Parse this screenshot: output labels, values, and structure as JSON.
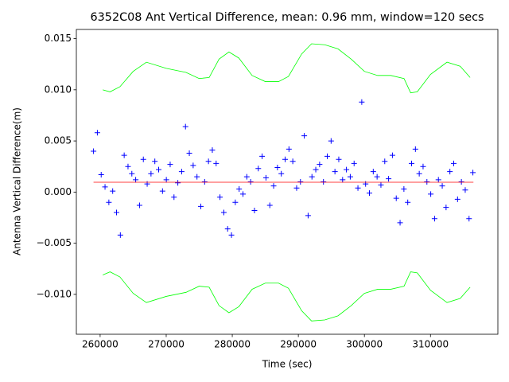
{
  "chart_data": {
    "type": "scatter",
    "title": "6352C08 Ant Vertical Difference, mean: 0.96 mm, window=120 secs",
    "x_label": "Time (sec)",
    "y_label": "Antenna Vertical Difference(m)",
    "xlim": [
      256400,
      320200
    ],
    "ylim": [
      -0.0139,
      0.0159
    ],
    "xticks": [
      260000,
      270000,
      280000,
      290000,
      300000,
      310000
    ],
    "yticks": [
      {
        "value": -0.01,
        "label": "−0.010"
      },
      {
        "value": -0.005,
        "label": "−0.005"
      },
      {
        "value": 0,
        "label": "0.000"
      },
      {
        "value": 0.005,
        "label": "0.005"
      },
      {
        "value": 0.01,
        "label": "0.010"
      },
      {
        "value": 0.015,
        "label": "0.015"
      }
    ],
    "series": [
      {
        "style": "marker",
        "color": "#0000ff",
        "x": [
          259000,
          259580,
          260160,
          260740,
          261320,
          261900,
          262480,
          263060,
          263640,
          264220,
          264800,
          265380,
          265960,
          266540,
          267120,
          267700,
          268280,
          268860,
          269440,
          270020,
          270600,
          271180,
          271760,
          272340,
          272920,
          273500,
          274080,
          274660,
          275240,
          275820,
          276400,
          276980,
          277560,
          278140,
          278720,
          279300,
          279880,
          280460,
          281040,
          281620,
          282200,
          282780,
          283360,
          283940,
          284520,
          285100,
          285680,
          286260,
          286840,
          287420,
          288000,
          288580,
          289160,
          289740,
          290320,
          290900,
          291480,
          292060,
          292640,
          293220,
          293800,
          294380,
          294960,
          295540,
          296120,
          296700,
          297280,
          297860,
          298440,
          299020,
          299600,
          300180,
          300760,
          301340,
          301920,
          302500,
          303080,
          303660,
          304240,
          304820,
          305400,
          305980,
          306560,
          307140,
          307720,
          308300,
          308880,
          309460,
          310040,
          310620,
          311200,
          311780,
          312360,
          312940,
          313520,
          314100,
          314680,
          315260,
          315840,
          316420
        ],
        "values": [
          0.004,
          0.0058,
          0.0017,
          0.0005,
          -0.001,
          0.0001,
          -0.002,
          -0.0042,
          0.0036,
          0.0025,
          0.0018,
          0.0012,
          -0.0013,
          0.0032,
          0.0008,
          0.0018,
          0.003,
          0.0022,
          0.0001,
          0.0012,
          0.0027,
          -0.0005,
          0.0009,
          0.002,
          0.0064,
          0.0038,
          0.0026,
          0.0015,
          -0.0014,
          0.001,
          0.003,
          0.0041,
          0.0028,
          -0.0005,
          -0.002,
          -0.0036,
          -0.0042,
          -0.001,
          0.0003,
          -0.0002,
          0.0015,
          0.001,
          -0.0018,
          0.0023,
          0.0035,
          0.0014,
          -0.0013,
          0.0006,
          0.0024,
          0.0018,
          0.0032,
          0.0042,
          0.003,
          0.0004,
          0.001,
          0.0055,
          -0.0023,
          0.0015,
          0.0022,
          0.0027,
          0.001,
          0.0035,
          0.005,
          0.002,
          0.0032,
          0.0012,
          0.0022,
          0.0015,
          0.0028,
          0.0004,
          0.0088,
          0.0008,
          -0.0001,
          0.002,
          0.0015,
          0.0007,
          0.003,
          0.0013,
          0.0036,
          -0.0006,
          -0.003,
          0.0003,
          -0.001,
          0.0028,
          0.0042,
          0.0018,
          0.0025,
          0.001,
          -0.0002,
          -0.0026,
          0.0012,
          0.0006,
          -0.0015,
          0.002,
          0.0028,
          -0.0007,
          0.001,
          0.0002,
          -0.0026,
          0.0019
        ]
      },
      {
        "style": "line",
        "color": "#ff0000",
        "x": [
          259000,
          316500
        ],
        "values": [
          0.00096,
          0.00096
        ]
      },
      {
        "style": "line",
        "color": "#00ff00",
        "x": [
          260400,
          261500,
          263000,
          265000,
          267000,
          270000,
          273000,
          275000,
          276500,
          278000,
          279500,
          281000,
          283000,
          285000,
          287000,
          288500,
          290500,
          292000,
          294000,
          296000,
          298000,
          300000,
          302000,
          304000,
          306000,
          307000,
          308000,
          310000,
          312500,
          314500,
          316000
        ],
        "values": [
          0.01,
          0.0098,
          0.0103,
          0.0118,
          0.0127,
          0.0121,
          0.0117,
          0.0111,
          0.0112,
          0.013,
          0.0137,
          0.0131,
          0.0114,
          0.0108,
          0.0108,
          0.0113,
          0.0135,
          0.0145,
          0.0144,
          0.014,
          0.013,
          0.0118,
          0.0114,
          0.0114,
          0.0111,
          0.0097,
          0.0098,
          0.0115,
          0.0127,
          0.0123,
          0.0112
        ]
      },
      {
        "style": "line",
        "color": "#00ff00",
        "x": [
          260400,
          261500,
          263000,
          265000,
          267000,
          270000,
          273000,
          275000,
          276500,
          278000,
          279500,
          281000,
          283000,
          285000,
          287000,
          288500,
          290500,
          292000,
          294000,
          296000,
          298000,
          300000,
          302000,
          304000,
          306000,
          307000,
          308000,
          310000,
          312500,
          314500,
          316000
        ],
        "values": [
          -0.0081,
          -0.0078,
          -0.0083,
          -0.0099,
          -0.0108,
          -0.0102,
          -0.0098,
          -0.0092,
          -0.0093,
          -0.0111,
          -0.0118,
          -0.0112,
          -0.0095,
          -0.0089,
          -0.0089,
          -0.0094,
          -0.0116,
          -0.0126,
          -0.0125,
          -0.0121,
          -0.0111,
          -0.0099,
          -0.0095,
          -0.0095,
          -0.0092,
          -0.0078,
          -0.0079,
          -0.0096,
          -0.0108,
          -0.0104,
          -0.0093
        ]
      }
    ]
  }
}
